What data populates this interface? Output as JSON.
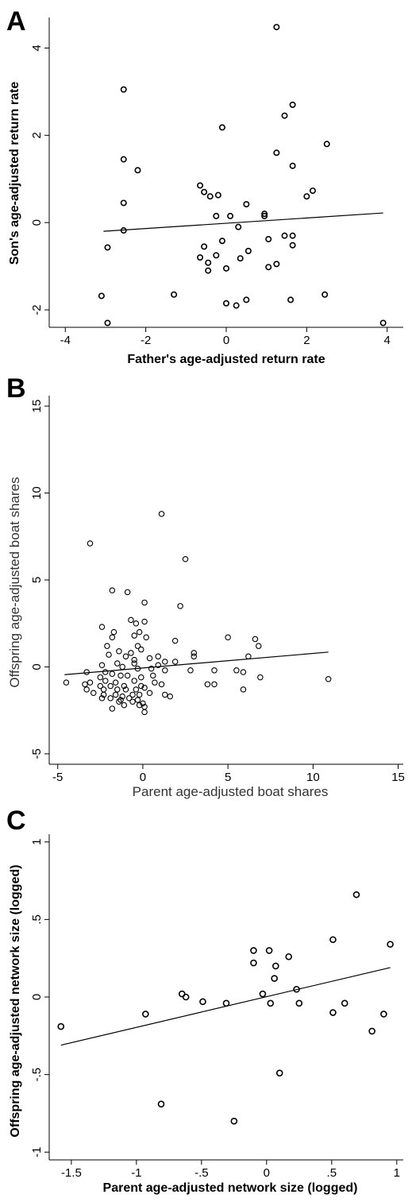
{
  "chart_data": [
    {
      "panel": "A",
      "type": "scatter",
      "xlabel": "Father's age-adjusted return rate",
      "ylabel": "Son's age-adjusted return rate",
      "xlim": [
        -4.4,
        4.4
      ],
      "ylim": [
        -2.4,
        4.7
      ],
      "xticks": [
        -4,
        -2,
        0,
        2,
        4
      ],
      "xtick_labels": [
        "-4",
        "-2",
        "0",
        "2",
        "4"
      ],
      "yticks": [
        -2,
        0,
        2,
        4
      ],
      "ytick_labels": [
        "-2",
        "0",
        "2",
        "4"
      ],
      "fit": {
        "x": [
          -3.05,
          3.9
        ],
        "y": [
          -0.2,
          0.22
        ]
      },
      "points": [
        [
          1.25,
          4.48
        ],
        [
          -2.55,
          3.05
        ],
        [
          1.65,
          2.7
        ],
        [
          1.45,
          2.45
        ],
        [
          -0.1,
          2.18
        ],
        [
          2.5,
          1.8
        ],
        [
          1.25,
          1.6
        ],
        [
          -2.55,
          1.45
        ],
        [
          1.65,
          1.3
        ],
        [
          -2.2,
          1.2
        ],
        [
          -0.65,
          0.85
        ],
        [
          2.15,
          0.73
        ],
        [
          -0.55,
          0.7
        ],
        [
          -0.2,
          0.63
        ],
        [
          -0.4,
          0.6
        ],
        [
          2.0,
          0.6
        ],
        [
          -2.55,
          0.45
        ],
        [
          0.5,
          0.42
        ],
        [
          0.95,
          0.2
        ],
        [
          -0.25,
          0.15
        ],
        [
          0.1,
          0.15
        ],
        [
          0.95,
          0.15
        ],
        [
          -2.55,
          -0.18
        ],
        [
          0.3,
          -0.1
        ],
        [
          1.45,
          -0.3
        ],
        [
          1.65,
          -0.3
        ],
        [
          1.05,
          -0.38
        ],
        [
          -0.1,
          -0.42
        ],
        [
          -2.95,
          -0.57
        ],
        [
          -0.55,
          -0.55
        ],
        [
          1.65,
          -0.52
        ],
        [
          0.55,
          -0.65
        ],
        [
          -0.25,
          -0.75
        ],
        [
          -0.65,
          -0.8
        ],
        [
          0.35,
          -0.82
        ],
        [
          -0.45,
          -0.92
        ],
        [
          1.25,
          -0.95
        ],
        [
          1.05,
          -1.02
        ],
        [
          0.0,
          -1.05
        ],
        [
          -0.45,
          -1.1
        ],
        [
          -1.3,
          -1.65
        ],
        [
          2.45,
          -1.65
        ],
        [
          -3.1,
          -1.68
        ],
        [
          0.5,
          -1.77
        ],
        [
          1.6,
          -1.77
        ],
        [
          0.0,
          -1.85
        ],
        [
          0.25,
          -1.9
        ],
        [
          -2.95,
          -2.3
        ],
        [
          3.9,
          -2.3
        ]
      ]
    },
    {
      "panel": "B",
      "type": "scatter",
      "xlabel": "Parent age-adjusted boat shares",
      "ylabel": "Offspring age-adjusted boat shares",
      "xlim": [
        -5.5,
        15.3
      ],
      "ylim": [
        -5.6,
        15.6
      ],
      "xticks": [
        -5,
        0,
        5,
        10,
        15
      ],
      "xtick_labels": [
        "-5",
        "0",
        "5",
        "10",
        "15"
      ],
      "yticks": [
        -5,
        0,
        5,
        10,
        15
      ],
      "ytick_labels": [
        "-5",
        "0",
        "5",
        "10",
        "15"
      ],
      "fit": {
        "x": [
          -4.6,
          10.9
        ],
        "y": [
          -0.45,
          0.85
        ]
      },
      "points": [
        [
          1.1,
          8.8
        ],
        [
          -3.1,
          7.1
        ],
        [
          2.5,
          6.2
        ],
        [
          -1.8,
          4.4
        ],
        [
          -0.9,
          4.3
        ],
        [
          0.1,
          3.7
        ],
        [
          2.2,
          3.5
        ],
        [
          -0.7,
          2.7
        ],
        [
          0.1,
          2.6
        ],
        [
          -2.4,
          2.3
        ],
        [
          -0.4,
          2.5
        ],
        [
          -1.7,
          2.0
        ],
        [
          -1.8,
          1.7
        ],
        [
          -0.5,
          1.8
        ],
        [
          -0.2,
          2.0
        ],
        [
          0.2,
          1.7
        ],
        [
          5.0,
          1.7
        ],
        [
          6.6,
          1.6
        ],
        [
          -2.1,
          1.2
        ],
        [
          -0.3,
          1.2
        ],
        [
          6.8,
          1.2
        ],
        [
          1.9,
          1.5
        ],
        [
          -1.4,
          0.9
        ],
        [
          -0.7,
          0.8
        ],
        [
          -0.1,
          1.0
        ],
        [
          3.0,
          0.8
        ],
        [
          0.9,
          0.6
        ],
        [
          -2.0,
          0.7
        ],
        [
          -1.0,
          0.6
        ],
        [
          0.4,
          0.5
        ],
        [
          3.0,
          0.6
        ],
        [
          6.2,
          0.6
        ],
        [
          -0.5,
          0.4
        ],
        [
          1.3,
          0.3
        ],
        [
          1.9,
          0.3
        ],
        [
          -1.5,
          0.2
        ],
        [
          -0.5,
          0.2
        ],
        [
          0.9,
          0.1
        ],
        [
          -2.4,
          0.1
        ],
        [
          -1.2,
          0.0
        ],
        [
          -0.3,
          -0.1
        ],
        [
          0.5,
          -0.1
        ],
        [
          1.3,
          -0.2
        ],
        [
          2.8,
          -0.2
        ],
        [
          4.2,
          -0.2
        ],
        [
          5.5,
          -0.2
        ],
        [
          -3.3,
          -0.3
        ],
        [
          -2.2,
          -0.3
        ],
        [
          -1.8,
          -0.4
        ],
        [
          -0.9,
          -0.5
        ],
        [
          5.9,
          -0.3
        ],
        [
          -2.5,
          -0.6
        ],
        [
          -1.3,
          -0.5
        ],
        [
          -0.1,
          -0.6
        ],
        [
          0.6,
          -0.5
        ],
        [
          6.9,
          -0.6
        ],
        [
          10.9,
          -0.7
        ],
        [
          -3.1,
          -0.9
        ],
        [
          -2.2,
          -0.8
        ],
        [
          -1.6,
          -0.9
        ],
        [
          -0.5,
          -0.8
        ],
        [
          0.7,
          -0.9
        ],
        [
          1.1,
          -1.0
        ],
        [
          3.8,
          -1.0
        ],
        [
          4.2,
          -1.0
        ],
        [
          -4.5,
          -0.9
        ],
        [
          -3.4,
          -1.0
        ],
        [
          -2.5,
          -1.1
        ],
        [
          -1.9,
          -1.1
        ],
        [
          -1.1,
          -1.1
        ],
        [
          -0.1,
          -1.1
        ],
        [
          0.1,
          -1.2
        ],
        [
          5.9,
          -1.3
        ],
        [
          -3.3,
          -1.3
        ],
        [
          -2.3,
          -1.3
        ],
        [
          -1.5,
          -1.3
        ],
        [
          -1.0,
          -1.3
        ],
        [
          -0.4,
          -1.3
        ],
        [
          0.4,
          -1.5
        ],
        [
          -2.9,
          -1.5
        ],
        [
          -2.3,
          -1.6
        ],
        [
          -1.6,
          -1.6
        ],
        [
          -1.2,
          -1.7
        ],
        [
          -0.6,
          -1.6
        ],
        [
          -0.2,
          -1.6
        ],
        [
          1.3,
          -1.6
        ],
        [
          1.6,
          -1.7
        ],
        [
          -2.4,
          -1.8
        ],
        [
          -1.9,
          -1.8
        ],
        [
          -1.3,
          -1.9
        ],
        [
          -0.8,
          -1.8
        ],
        [
          -0.3,
          -1.9
        ],
        [
          -1.4,
          -2.0
        ],
        [
          -0.6,
          -2.0
        ],
        [
          0.0,
          -2.1
        ],
        [
          -1.1,
          -2.2
        ],
        [
          -0.2,
          -2.2
        ],
        [
          0.1,
          -2.3
        ],
        [
          -1.8,
          -2.4
        ],
        [
          0.1,
          -2.6
        ]
      ]
    },
    {
      "panel": "C",
      "type": "scatter",
      "xlabel": "Parent age-adjusted network size (logged)",
      "ylabel": "Offspring age-adjusted network size (logged)",
      "xlim": [
        -1.67,
        1.05
      ],
      "ylim": [
        -1.05,
        1.05
      ],
      "xticks": [
        -1.5,
        -1,
        -0.5,
        0,
        0.5,
        1
      ],
      "xtick_labels": [
        "-1.5",
        "-1",
        "-.5",
        "0",
        ".5",
        "1"
      ],
      "yticks": [
        -1,
        -0.5,
        0,
        0.5,
        1
      ],
      "ytick_labels": [
        "-1",
        "-.5",
        "0",
        ".5",
        "1"
      ],
      "fit": {
        "x": [
          -1.58,
          0.95
        ],
        "y": [
          -0.31,
          0.19
        ]
      },
      "points": [
        [
          0.69,
          0.66
        ],
        [
          0.51,
          0.37
        ],
        [
          0.95,
          0.34
        ],
        [
          -0.1,
          0.3
        ],
        [
          0.02,
          0.3
        ],
        [
          0.17,
          0.26
        ],
        [
          -0.1,
          0.22
        ],
        [
          0.07,
          0.2
        ],
        [
          0.06,
          0.12
        ],
        [
          0.23,
          0.05
        ],
        [
          -0.03,
          0.02
        ],
        [
          -0.65,
          0.02
        ],
        [
          -0.62,
          0.0
        ],
        [
          -0.93,
          -0.11
        ],
        [
          -0.49,
          -0.03
        ],
        [
          -0.31,
          -0.04
        ],
        [
          0.03,
          -0.04
        ],
        [
          0.25,
          -0.04
        ],
        [
          0.6,
          -0.04
        ],
        [
          0.51,
          -0.1
        ],
        [
          0.9,
          -0.11
        ],
        [
          -1.58,
          -0.19
        ],
        [
          0.81,
          -0.22
        ],
        [
          0.1,
          -0.49
        ],
        [
          -0.81,
          -0.69
        ],
        [
          -0.25,
          -0.8
        ]
      ]
    }
  ]
}
